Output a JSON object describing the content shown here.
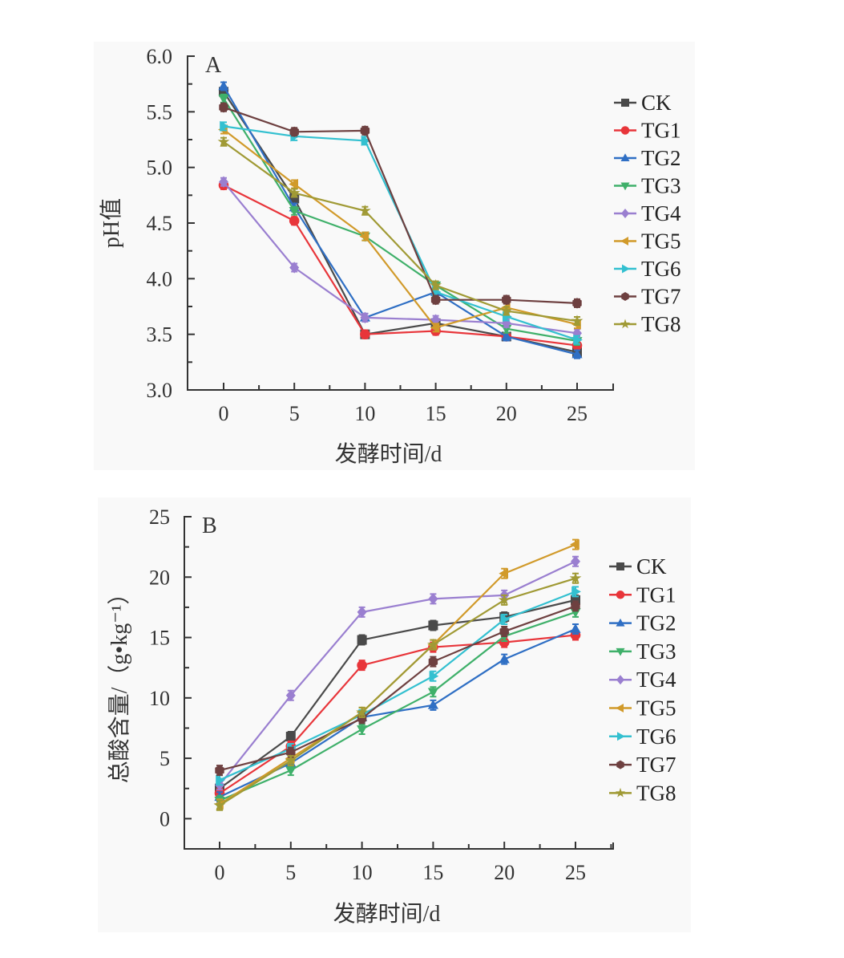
{
  "chart_data": [
    {
      "type": "line",
      "panel": "A",
      "title": "",
      "xlabel": "发酵时间/d",
      "ylabel": "pH值",
      "x": [
        0,
        5,
        10,
        15,
        20,
        25
      ],
      "xticks": [
        "0",
        "5",
        "10",
        "15",
        "20",
        "25"
      ],
      "ylim": [
        3.0,
        6.0
      ],
      "yticks": [
        "3.0",
        "3.5",
        "4.0",
        "4.5",
        "5.0",
        "5.5",
        "6.0"
      ],
      "grid": false,
      "legend": "right",
      "error_bars": true,
      "series": [
        {
          "name": "CK",
          "color": "#4a4a4a",
          "marker": "square",
          "values": [
            5.68,
            4.72,
            3.5,
            3.6,
            3.48,
            3.34
          ]
        },
        {
          "name": "TG1",
          "color": "#e8353a",
          "marker": "circle",
          "values": [
            4.84,
            4.52,
            3.5,
            3.53,
            3.48,
            3.4
          ]
        },
        {
          "name": "TG2",
          "color": "#2f6fc4",
          "marker": "triangle-up",
          "values": [
            5.73,
            4.64,
            3.65,
            3.88,
            3.48,
            3.32
          ]
        },
        {
          "name": "TG3",
          "color": "#3fb06a",
          "marker": "triangle-down",
          "values": [
            5.62,
            4.61,
            4.38,
            3.94,
            3.55,
            3.44
          ]
        },
        {
          "name": "TG4",
          "color": "#9a7fd0",
          "marker": "diamond",
          "values": [
            4.87,
            4.1,
            3.65,
            3.63,
            3.6,
            3.51
          ]
        },
        {
          "name": "TG5",
          "color": "#d19a2a",
          "marker": "triangle-left",
          "values": [
            5.34,
            4.85,
            4.38,
            3.56,
            3.74,
            3.59
          ]
        },
        {
          "name": "TG6",
          "color": "#33c0d0",
          "marker": "triangle-right",
          "values": [
            5.37,
            5.28,
            5.24,
            3.88,
            3.66,
            3.45
          ]
        },
        {
          "name": "TG7",
          "color": "#6e4040",
          "marker": "hexagon",
          "values": [
            5.54,
            5.32,
            5.33,
            3.81,
            3.81,
            3.78
          ]
        },
        {
          "name": "TG8",
          "color": "#a09a35",
          "marker": "star",
          "values": [
            5.23,
            4.77,
            4.61,
            3.94,
            3.71,
            3.62
          ]
        }
      ]
    },
    {
      "type": "line",
      "panel": "B",
      "title": "",
      "xlabel": "发酵时间/d",
      "ylabel": "总酸含量/（g•kg⁻¹）",
      "x": [
        0,
        5,
        10,
        15,
        20,
        25
      ],
      "xticks": [
        "0",
        "5",
        "10",
        "15",
        "20",
        "25"
      ],
      "ylim": [
        -2.5,
        25
      ],
      "yticks": [
        "0",
        "5",
        "10",
        "15",
        "20",
        "25"
      ],
      "grid": false,
      "legend": "right",
      "error_bars": true,
      "series": [
        {
          "name": "CK",
          "color": "#4a4a4a",
          "marker": "square",
          "values": [
            2.5,
            6.8,
            14.8,
            16.0,
            16.7,
            18.1
          ]
        },
        {
          "name": "TG1",
          "color": "#e8353a",
          "marker": "circle",
          "values": [
            2.1,
            6.0,
            12.7,
            14.2,
            14.6,
            15.2
          ]
        },
        {
          "name": "TG2",
          "color": "#2f6fc4",
          "marker": "triangle-up",
          "values": [
            1.8,
            4.6,
            8.4,
            9.4,
            13.2,
            15.7
          ]
        },
        {
          "name": "TG3",
          "color": "#3fb06a",
          "marker": "triangle-down",
          "values": [
            1.5,
            4.0,
            7.4,
            10.5,
            15.1,
            17.1
          ]
        },
        {
          "name": "TG4",
          "color": "#9a7fd0",
          "marker": "diamond",
          "values": [
            2.8,
            10.2,
            17.1,
            18.2,
            18.5,
            21.3
          ]
        },
        {
          "name": "TG5",
          "color": "#d19a2a",
          "marker": "triangle-left",
          "values": [
            1.2,
            5.0,
            8.8,
            14.4,
            20.3,
            22.7
          ]
        },
        {
          "name": "TG6",
          "color": "#33c0d0",
          "marker": "triangle-right",
          "values": [
            3.2,
            5.8,
            8.6,
            11.8,
            16.5,
            18.8
          ]
        },
        {
          "name": "TG7",
          "color": "#6e4040",
          "marker": "hexagon",
          "values": [
            4.0,
            5.5,
            8.3,
            13.0,
            15.5,
            17.6
          ]
        },
        {
          "name": "TG8",
          "color": "#a09a35",
          "marker": "star",
          "values": [
            1.1,
            4.8,
            8.8,
            14.4,
            18.1,
            19.9
          ]
        }
      ]
    }
  ]
}
